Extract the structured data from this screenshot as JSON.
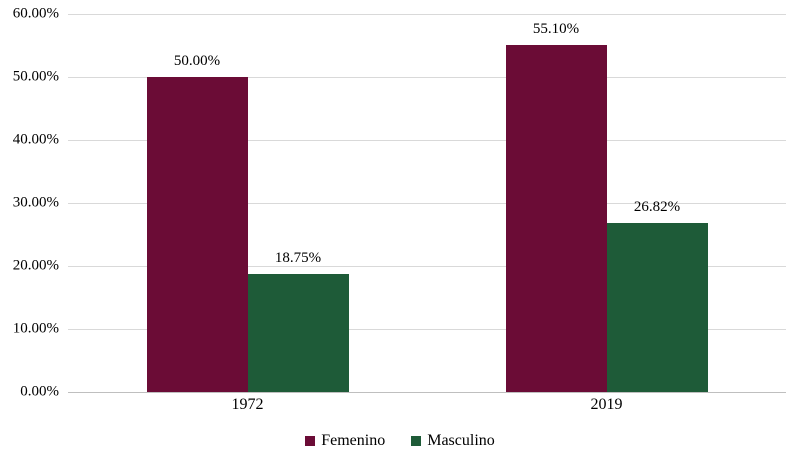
{
  "chart_data": {
    "type": "bar",
    "title": "",
    "xlabel": "",
    "ylabel": "",
    "categories": [
      "1972",
      "2019"
    ],
    "series": [
      {
        "name": "Femenino",
        "color": "#6b0c36",
        "values": [
          50.0,
          55.1
        ],
        "labels": [
          "50.00%",
          "55.10%"
        ]
      },
      {
        "name": "Masculino",
        "color": "#1e5b38",
        "values": [
          18.75,
          26.82
        ],
        "labels": [
          "18.75%",
          "26.82%"
        ]
      }
    ],
    "ylim": [
      0,
      60
    ],
    "y_tick_step": 10,
    "y_ticks": [
      "0.00%",
      "10.00%",
      "20.00%",
      "30.00%",
      "40.00%",
      "50.00%",
      "60.00%"
    ],
    "grid": true,
    "legend_position": "bottom"
  },
  "colors": {
    "gridline": "#d9d9d9",
    "baseline": "#bfbfbf",
    "text": "#000000",
    "background": "#ffffff"
  }
}
